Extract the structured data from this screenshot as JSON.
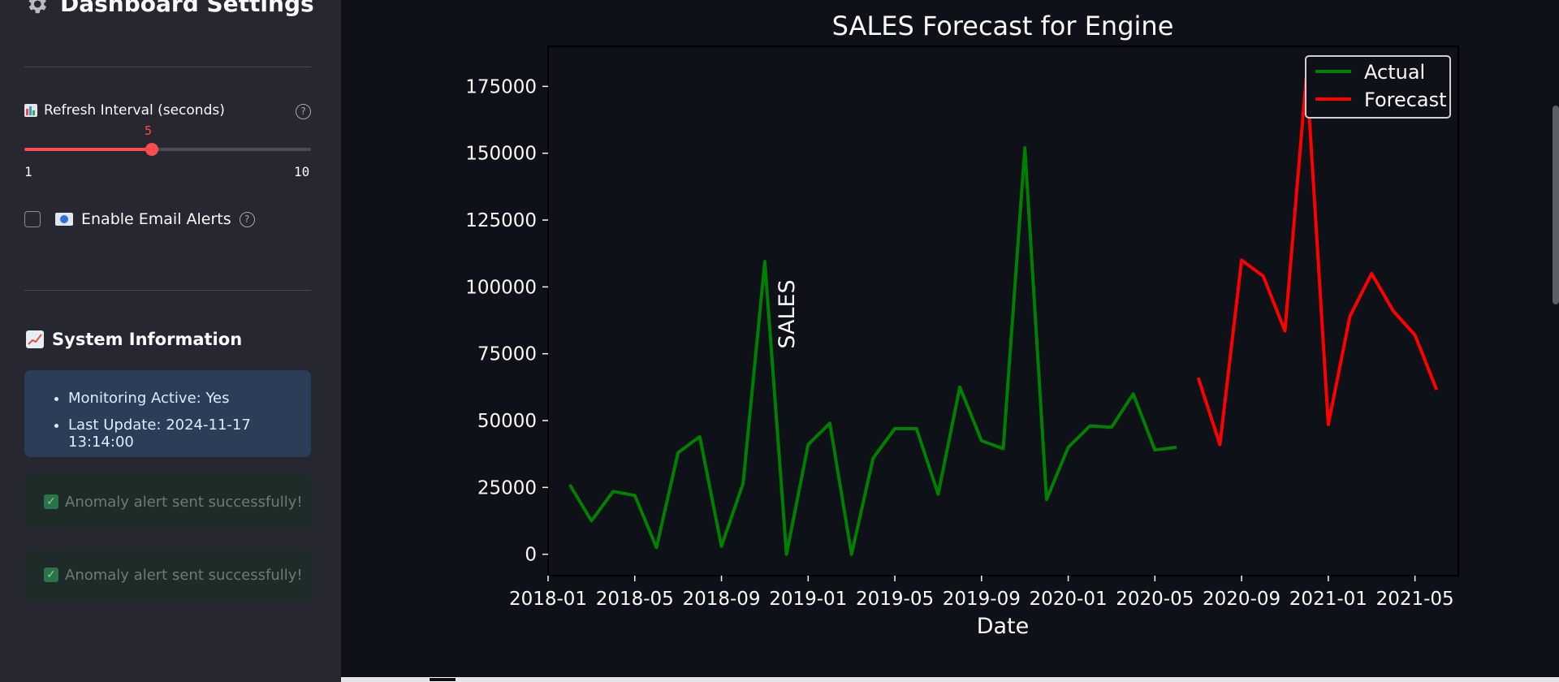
{
  "sidebar": {
    "title": "Dashboard Settings",
    "slider": {
      "label": "Refresh Interval (seconds)",
      "value": "5",
      "min": "1",
      "max": "10",
      "fraction": 0.444
    },
    "email_alerts": {
      "label": "Enable Email Alerts",
      "checked": false
    },
    "system_info": {
      "header": "System Information",
      "items": [
        "Monitoring Active: Yes",
        "Last Update: 2024-11-17 13:14:00"
      ]
    },
    "alerts": [
      "Anomaly alert sent successfully!",
      "Anomaly alert sent successfully!"
    ]
  },
  "colors": {
    "accent": "#ff4b4b",
    "actual": "#008000",
    "forecast": "#ff0000",
    "sidebar_bg": "#262730",
    "main_bg": "#0e1117"
  },
  "chart_data": {
    "type": "line",
    "title": "SALES Forecast for Engine",
    "xlabel": "Date",
    "ylabel": "SALES",
    "x_ticks": [
      "2018-01",
      "2018-05",
      "2018-09",
      "2019-01",
      "2019-05",
      "2019-09",
      "2020-01",
      "2020-05",
      "2020-09",
      "2021-01",
      "2021-05"
    ],
    "y_ticks": [
      0,
      25000,
      50000,
      75000,
      100000,
      125000,
      150000,
      175000
    ],
    "ylim": [
      -8000,
      190000
    ],
    "xlim": [
      "2018-01",
      "2021-07"
    ],
    "legend": "top-right",
    "series": [
      {
        "name": "Actual",
        "color": "#008000",
        "x": [
          "2018-02",
          "2018-03",
          "2018-04",
          "2018-05",
          "2018-06",
          "2018-07",
          "2018-08",
          "2018-09",
          "2018-10",
          "2018-11",
          "2018-12",
          "2019-01",
          "2019-02",
          "2019-03",
          "2019-04",
          "2019-05",
          "2019-06",
          "2019-07",
          "2019-08",
          "2019-09",
          "2019-10",
          "2019-11",
          "2019-12",
          "2020-01",
          "2020-02",
          "2020-03",
          "2020-04",
          "2020-05",
          "2020-06"
        ],
        "values": [
          26000,
          12500,
          23500,
          22000,
          2500,
          38000,
          44000,
          3000,
          26500,
          109500,
          0,
          41000,
          49000,
          0,
          36000,
          47000,
          47000,
          22500,
          62500,
          42500,
          39500,
          152000,
          20500,
          40000,
          48000,
          47500,
          60000,
          39000,
          40000
        ]
      },
      {
        "name": "Forecast",
        "color": "#ff0000",
        "x": [
          "2020-07",
          "2020-08",
          "2020-09",
          "2020-10",
          "2020-11",
          "2020-12",
          "2021-01",
          "2021-02",
          "2021-03",
          "2021-04",
          "2021-05",
          "2021-06"
        ],
        "values": [
          66000,
          41000,
          110000,
          104000,
          83500,
          180000,
          48500,
          89000,
          105000,
          91000,
          82000,
          61500
        ]
      }
    ]
  }
}
